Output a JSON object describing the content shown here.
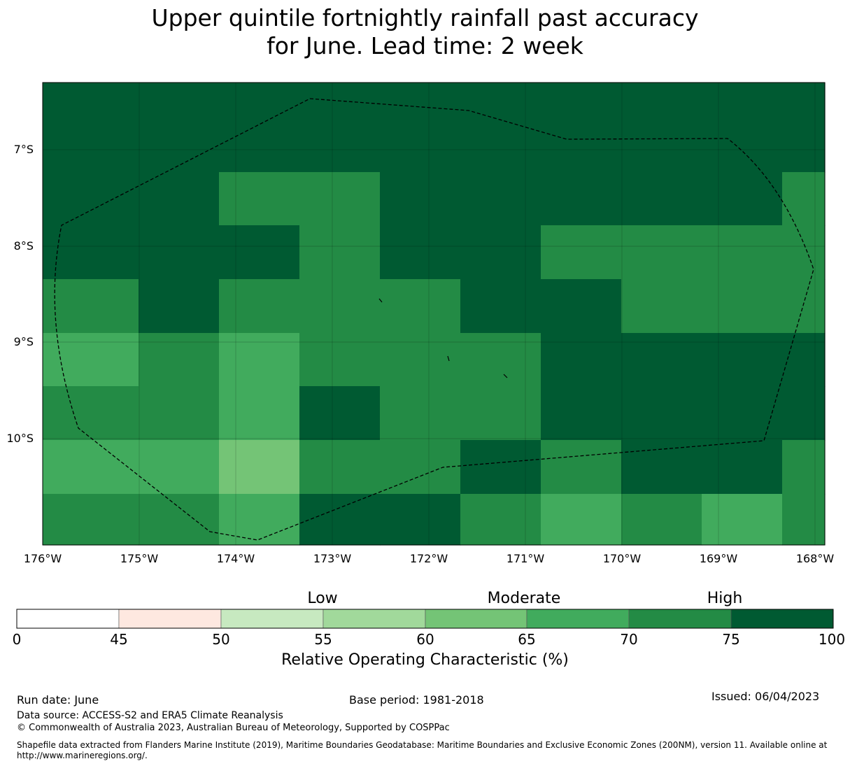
{
  "title": {
    "line1": "Upper quintile fortnightly rainfall past accuracy",
    "line2": "for June. Lead time: 2 week"
  },
  "map": {
    "lat_labels": [
      "7°S",
      "8°S",
      "9°S",
      "10°S"
    ],
    "lon_labels": [
      "176°W",
      "175°W",
      "174°W",
      "173°W",
      "172°W",
      "171°W",
      "170°W",
      "169°W",
      "168°W"
    ],
    "category_colors": [
      "#ffffff",
      "#fee8e0",
      "#c7e9c0",
      "#a1d99b",
      "#74c476",
      "#41ab5d",
      "#238b45",
      "#005a32"
    ],
    "grid_categories": [
      [
        7,
        7,
        7,
        7,
        7,
        7,
        7,
        7,
        7,
        7
      ],
      [
        7,
        7,
        6,
        6,
        7,
        7,
        7,
        7,
        7,
        6
      ],
      [
        7,
        7,
        7,
        6,
        7,
        7,
        6,
        6,
        6,
        6
      ],
      [
        6,
        7,
        6,
        6,
        6,
        7,
        7,
        6,
        6,
        6
      ],
      [
        5,
        6,
        5,
        6,
        6,
        6,
        7,
        7,
        7,
        7
      ],
      [
        6,
        6,
        5,
        7,
        6,
        6,
        7,
        7,
        7,
        7
      ],
      [
        5,
        5,
        4,
        6,
        6,
        7,
        6,
        7,
        7,
        6
      ],
      [
        6,
        6,
        5,
        7,
        7,
        6,
        5,
        6,
        5,
        6
      ]
    ]
  },
  "colorbar": {
    "words": [
      "Low",
      "Moderate",
      "High"
    ],
    "ticks": [
      "0",
      "45",
      "50",
      "55",
      "60",
      "65",
      "70",
      "75",
      "100"
    ],
    "colors": [
      "#ffffff",
      "#fee8e0",
      "#c7e9c0",
      "#a1d99b",
      "#74c476",
      "#41ab5d",
      "#238b45",
      "#005a32"
    ],
    "label": "Relative Operating Characteristic (%)"
  },
  "footer": {
    "run_date": "Run date: June",
    "base_period": "Base period: 1981-2018",
    "issued": "Issued: 06/04/2023",
    "data_source": "Data source: ACCESS-S2 and ERA5 Climate Reanalysis",
    "copyright": "© Commonwealth of Australia 2023, Australian Bureau of Meteorology, Supported by COSPPac",
    "shapefile": "Shapefile data extracted from Flanders Marine Institute (2019), Maritime Boundaries Geodatabase: Maritime Boundaries and Exclusive Economic Zones (200NM), version 11. Available online at http://www.marineregions.org/."
  }
}
